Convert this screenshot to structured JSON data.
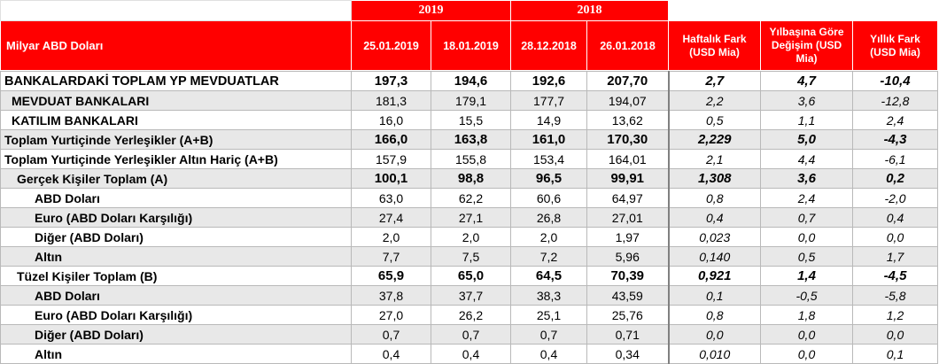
{
  "years": {
    "y2019": "2019",
    "y2018": "2018"
  },
  "header": {
    "label": "Milyar ABD Doları",
    "dates": [
      "25.01.2019",
      "18.01.2019",
      "28.12.2018",
      "26.01.2018"
    ],
    "weekly": "Haftalık  Fark (USD Mia)",
    "ytd": "Yılbaşına Göre Değişim (USD Mia)",
    "annual": "Yıllık Fark (USD Mia)"
  },
  "rows": [
    {
      "name": "BANKALARDAKİ TOPLAM YP MEVDUATLAR",
      "v": [
        "197,3",
        "194,6",
        "192,6",
        "207,70"
      ],
      "d": [
        "2,7",
        "4,7",
        "-10,4"
      ]
    },
    {
      "name": "MEVDUAT BANKALARI",
      "v": [
        "181,3",
        "179,1",
        "177,7",
        "194,07"
      ],
      "d": [
        "2,2",
        "3,6",
        "-12,8"
      ]
    },
    {
      "name": "KATILIM BANKALARI",
      "v": [
        "16,0",
        "15,5",
        "14,9",
        "13,62"
      ],
      "d": [
        "0,5",
        "1,1",
        "2,4"
      ]
    },
    {
      "name": "Toplam Yurtiçinde Yerleşikler (A+B)",
      "v": [
        "166,0",
        "163,8",
        "161,0",
        "170,30"
      ],
      "d": [
        "2,229",
        "5,0",
        "-4,3"
      ]
    },
    {
      "name": "Toplam Yurtiçinde Yerleşikler Altın Hariç (A+B)",
      "v": [
        "157,9",
        "155,8",
        "153,4",
        "164,01"
      ],
      "d": [
        "2,1",
        "4,4",
        "-6,1"
      ]
    },
    {
      "name": "Gerçek Kişiler Toplam (A)",
      "v": [
        "100,1",
        "98,8",
        "96,5",
        "99,91"
      ],
      "d": [
        "1,308",
        "3,6",
        "0,2"
      ]
    },
    {
      "name": "ABD Doları",
      "v": [
        "63,0",
        "62,2",
        "60,6",
        "64,97"
      ],
      "d": [
        "0,8",
        "2,4",
        "-2,0"
      ]
    },
    {
      "name": "Euro (ABD Doları Karşılığı)",
      "v": [
        "27,4",
        "27,1",
        "26,8",
        "27,01"
      ],
      "d": [
        "0,4",
        "0,7",
        "0,4"
      ]
    },
    {
      "name": "Diğer (ABD Doları)",
      "v": [
        "2,0",
        "2,0",
        "2,0",
        "1,97"
      ],
      "d": [
        "0,023",
        "0,0",
        "0,0"
      ]
    },
    {
      "name": "Altın",
      "v": [
        "7,7",
        "7,5",
        "7,2",
        "5,96"
      ],
      "d": [
        "0,140",
        "0,5",
        "1,7"
      ]
    },
    {
      "name": "Tüzel Kişiler Toplam (B)",
      "v": [
        "65,9",
        "65,0",
        "64,5",
        "70,39"
      ],
      "d": [
        "0,921",
        "1,4",
        "-4,5"
      ]
    },
    {
      "name": "ABD Doları",
      "v": [
        "37,8",
        "37,7",
        "38,3",
        "43,59"
      ],
      "d": [
        "0,1",
        "-0,5",
        "-5,8"
      ]
    },
    {
      "name": "Euro (ABD Doları Karşılığı)",
      "v": [
        "27,0",
        "26,2",
        "25,1",
        "25,76"
      ],
      "d": [
        "0,8",
        "1,8",
        "1,2"
      ]
    },
    {
      "name": "Diğer (ABD Doları)",
      "v": [
        "0,7",
        "0,7",
        "0,7",
        "0,71"
      ],
      "d": [
        "0,0",
        "0,0",
        "0,0"
      ]
    },
    {
      "name": "Altın",
      "v": [
        "0,4",
        "0,4",
        "0,4",
        "0,34"
      ],
      "d": [
        "0,010",
        "0,0",
        "0,1"
      ]
    }
  ]
}
